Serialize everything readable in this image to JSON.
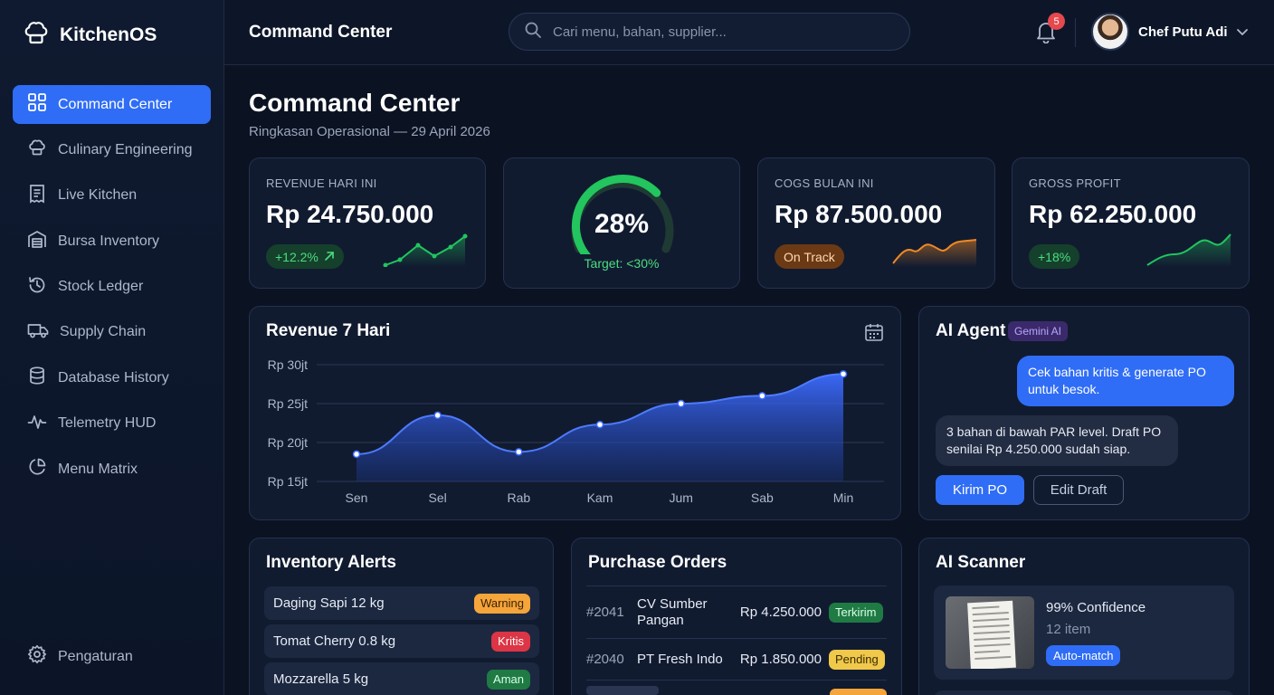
{
  "app": {
    "name": "KitchenOS"
  },
  "sidebar": {
    "items": [
      {
        "label": "Command Center",
        "icon": "grid-icon",
        "active": true
      },
      {
        "label": "Culinary Engineering",
        "icon": "chef-hat-icon"
      },
      {
        "label": "Live Kitchen",
        "icon": "receipt-icon"
      },
      {
        "label": "Bursa Inventory",
        "icon": "warehouse-icon"
      },
      {
        "label": "Stock Ledger",
        "icon": "history-icon"
      },
      {
        "label": "Supply Chain",
        "icon": "truck-icon"
      },
      {
        "label": "Database History",
        "icon": "database-icon"
      },
      {
        "label": "Telemetry HUD",
        "icon": "activity-icon"
      },
      {
        "label": "Menu Matrix",
        "icon": "pie-chart-icon"
      }
    ],
    "settings_label": "Pengaturan"
  },
  "header": {
    "title": "Command Center",
    "search_placeholder": "Cari menu, bahan, supplier...",
    "notification_count": "5",
    "user_name": "Chef Putu Adi"
  },
  "page": {
    "title": "Command Center",
    "subtitle": "Ringkasan Operasional — 29 April 2026"
  },
  "kpis": {
    "revenue": {
      "label": "REVENUE HARI INI",
      "value": "Rp 24.750.000",
      "change": "+12.2%"
    },
    "food_cost": {
      "value": "28%",
      "percent": 28,
      "target": "Target: <30%"
    },
    "cogs": {
      "label": "COGS BULAN INI",
      "value": "Rp 87.500.000",
      "status": "On Track"
    },
    "gross_profit": {
      "label": "GROSS PROFIT",
      "value": "Rp 62.250.000",
      "change": "+18%"
    }
  },
  "revenue_chart": {
    "title": "Revenue 7 Hari"
  },
  "chart_data": {
    "type": "area",
    "title": "Revenue 7 Hari",
    "categories": [
      "Sen",
      "Sel",
      "Rab",
      "Kam",
      "Jum",
      "Sab",
      "Min"
    ],
    "values": [
      18.5,
      23.5,
      18.8,
      22.3,
      25.0,
      26.0,
      28.8
    ],
    "ylim": [
      15,
      30
    ],
    "yticks": [
      30,
      25,
      20,
      15
    ],
    "ytick_labels": [
      "Rp 30jt",
      "Rp 25jt",
      "Rp 20jt",
      "Rp 15jt"
    ],
    "grid": true
  },
  "ai_agent": {
    "title": "AI Agent",
    "badge": "Gemini AI",
    "user_message": "Cek bahan kritis & generate PO untuk besok.",
    "ai_message": "3 bahan di bawah PAR level. Draft PO senilai Rp 4.250.000 sudah siap.",
    "primary_button": "Kirim PO",
    "secondary_button": "Edit Draft"
  },
  "inventory_alerts": {
    "title": "Inventory Alerts",
    "items": [
      {
        "name": "Daging Sapi 12 kg",
        "status": "Warning"
      },
      {
        "name": "Tomat Cherry 0.8 kg",
        "status": "Kritis"
      },
      {
        "name": "Mozzarella 5 kg",
        "status": "Aman"
      }
    ]
  },
  "purchase_orders": {
    "title": "Purchase Orders",
    "rows": [
      {
        "id": "#2041",
        "supplier": "CV Sumber Pangan",
        "amount": "Rp 4.250.000",
        "status": "Terkirim"
      },
      {
        "id": "#2040",
        "supplier": "PT Fresh Indo",
        "amount": "Rp 1.850.000",
        "status": "Pending"
      }
    ]
  },
  "ai_scanner": {
    "title": "AI Scanner",
    "confidence": "99% Confidence",
    "items": "12 item",
    "badge": "Auto-match"
  },
  "colors": {
    "accent": "#2f6df6",
    "success": "#22c55e",
    "warning": "#f6a53a",
    "danger": "#dc3545",
    "orange": "#f08a24"
  }
}
